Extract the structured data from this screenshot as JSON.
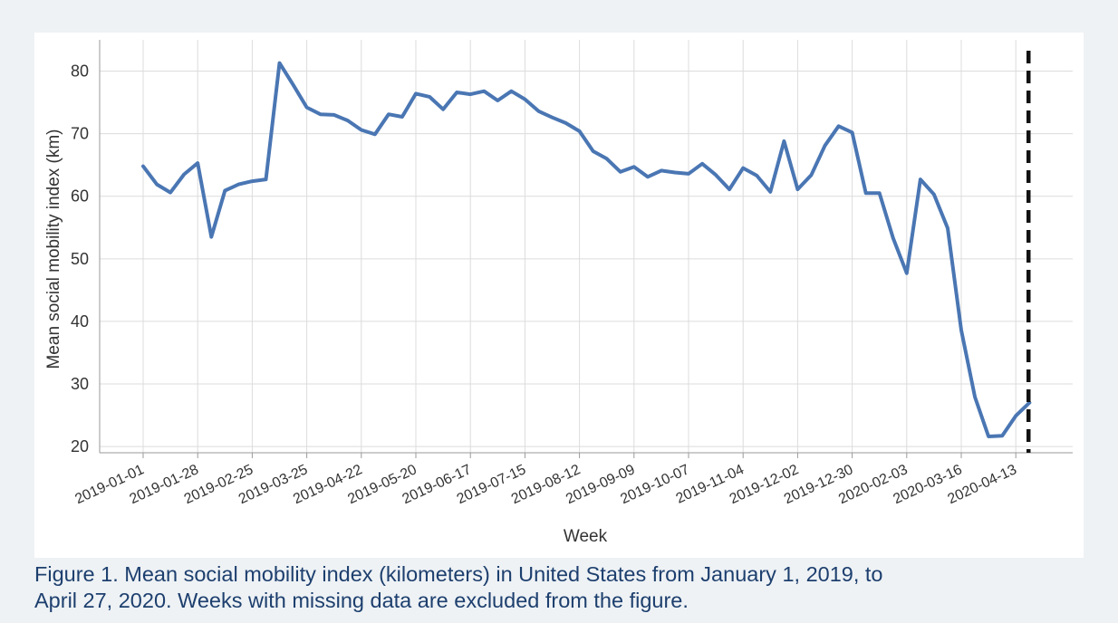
{
  "chart_data": {
    "type": "line",
    "xlabel": "Week",
    "ylabel": "Mean social mobility index (km)",
    "ylim": [
      19,
      85
    ],
    "yticks": [
      20,
      30,
      40,
      50,
      60,
      70,
      80
    ],
    "grid": true,
    "legend": "none",
    "line_color": "#4a76b3",
    "marker_line_color": "#111111",
    "marker_line_style": "dashed",
    "marker_line_x": 65,
    "x_tick_positions": [
      0,
      4,
      8,
      12,
      16,
      20,
      24,
      28,
      32,
      36,
      40,
      44,
      48,
      52,
      56,
      64
    ],
    "x_tick_labels": [
      "2019-01-01",
      "2019-01-28",
      "2019-02-25",
      "2019-03-25",
      "2019-04-22",
      "2019-05-20",
      "2019-06-17",
      "2019-07-15",
      "2019-08-12",
      "2019-09-09",
      "2019-10-07",
      "2019-11-04",
      "2019-12-02",
      "2019-12-30",
      "2020-02-03",
      "2020-04-13"
    ],
    "x_tick_positions_extra": [
      60
    ],
    "x_tick_labels_extra": [
      "2020-03-16"
    ],
    "x_index_max": 67,
    "series": [
      {
        "x": [
          0,
          1,
          2,
          3,
          4,
          5,
          6,
          7,
          8,
          9,
          10,
          11,
          12,
          13,
          14,
          15,
          16,
          17,
          18,
          19,
          20,
          21,
          22,
          23,
          24,
          25,
          26,
          27,
          28,
          29,
          30,
          31,
          32,
          33,
          34,
          35,
          36,
          37,
          38,
          39,
          40,
          41,
          42,
          43,
          44,
          45,
          46,
          47,
          48,
          49,
          50,
          51,
          52,
          53,
          54,
          55,
          56,
          57,
          58,
          59,
          60,
          61,
          62,
          63,
          64,
          65
        ],
        "values": [
          64.8,
          61.9,
          60.6,
          63.5,
          65.3,
          53.5,
          60.9,
          61.9,
          62.4,
          62.7,
          81.3,
          77.8,
          74.2,
          73.1,
          73.0,
          72.1,
          70.6,
          69.9,
          73.1,
          72.7,
          76.4,
          75.9,
          73.9,
          76.6,
          76.3,
          76.8,
          75.3,
          76.8,
          75.5,
          73.6,
          72.6,
          71.7,
          70.4,
          67.2,
          66.0,
          63.9,
          64.7,
          63.1,
          64.1,
          63.8,
          63.6,
          65.2,
          63.4,
          61.1,
          64.5,
          63.3,
          60.7,
          68.8,
          61.1,
          63.4,
          68.1,
          71.2,
          70.2,
          60.5,
          60.5,
          53.3,
          47.7,
          62.7,
          60.3,
          54.9,
          38.6,
          27.9,
          21.6,
          21.7,
          24.9,
          27.0
        ]
      }
    ]
  },
  "caption": {
    "line1": "Figure 1. Mean social mobility index (kilometers) in United States from January 1, 2019, to",
    "line2": "April 27, 2020. Weeks with missing data are excluded from the figure."
  }
}
